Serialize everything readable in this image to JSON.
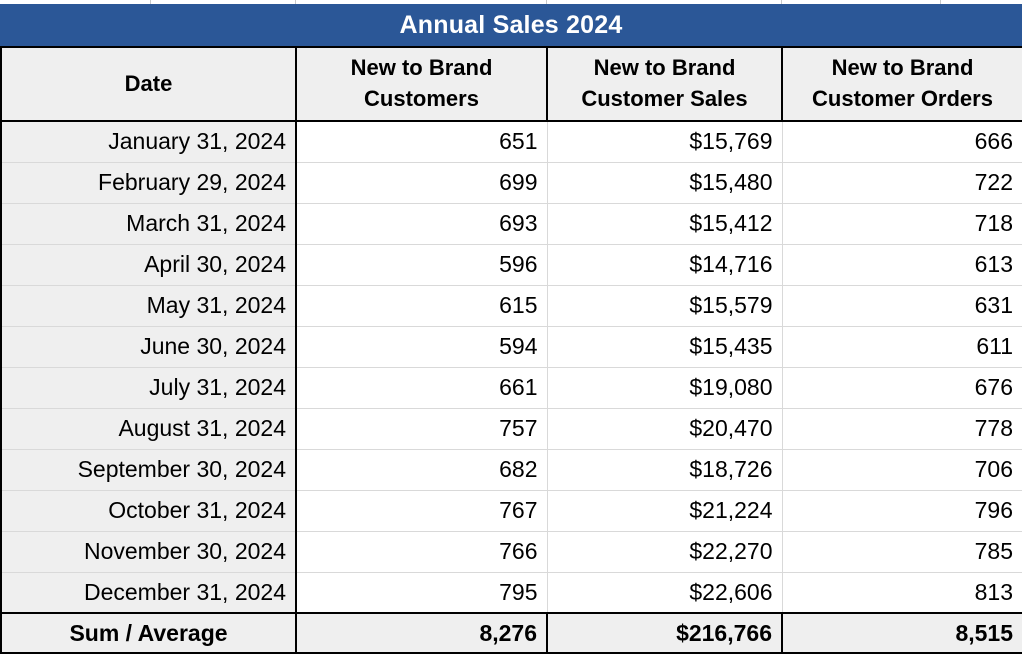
{
  "title": "Annual Sales 2024",
  "colors": {
    "title_bar_blue": "#2b5797",
    "title_text": "#ffffff",
    "header_cell_gray": "#efefef",
    "date_column_gray": "#efefef",
    "footer_gray": "#efefef",
    "data_cell_white": "#ffffff",
    "grid_line_gray": "#d9d9d9",
    "border_black": "#000000",
    "text_black": "#000000"
  },
  "table": {
    "columns": [
      "Date",
      "New to Brand Customers",
      "New to Brand Customer Sales",
      "New to Brand Customer Orders"
    ],
    "rows": [
      {
        "date": "January 31, 2024",
        "customers": "651",
        "sales": "$15,769",
        "orders": "666"
      },
      {
        "date": "February 29, 2024",
        "customers": "699",
        "sales": "$15,480",
        "orders": "722"
      },
      {
        "date": "March 31, 2024",
        "customers": "693",
        "sales": "$15,412",
        "orders": "718"
      },
      {
        "date": "April 30, 2024",
        "customers": "596",
        "sales": "$14,716",
        "orders": "613"
      },
      {
        "date": "May 31, 2024",
        "customers": "615",
        "sales": "$15,579",
        "orders": "631"
      },
      {
        "date": "June 30, 2024",
        "customers": "594",
        "sales": "$15,435",
        "orders": "611"
      },
      {
        "date": "July 31, 2024",
        "customers": "661",
        "sales": "$19,080",
        "orders": "676"
      },
      {
        "date": "August 31, 2024",
        "customers": "757",
        "sales": "$20,470",
        "orders": "778"
      },
      {
        "date": "September 30, 2024",
        "customers": "682",
        "sales": "$18,726",
        "orders": "706"
      },
      {
        "date": "October 31, 2024",
        "customers": "767",
        "sales": "$21,224",
        "orders": "796"
      },
      {
        "date": "November 30, 2024",
        "customers": "766",
        "sales": "$22,270",
        "orders": "785"
      },
      {
        "date": "December 31, 2024",
        "customers": "795",
        "sales": "$22,606",
        "orders": "813"
      }
    ],
    "footer": {
      "label": "Sum / Average",
      "customers": "8,276",
      "sales": "$216,766",
      "orders": "8,515"
    }
  },
  "chart_data": {
    "type": "table",
    "title": "Annual Sales 2024",
    "columns": [
      "Date",
      "New to Brand Customers",
      "New to Brand Customer Sales",
      "New to Brand Customer Orders"
    ],
    "categories": [
      "January 31, 2024",
      "February 29, 2024",
      "March 31, 2024",
      "April 30, 2024",
      "May 31, 2024",
      "June 30, 2024",
      "July 31, 2024",
      "August 31, 2024",
      "September 30, 2024",
      "October 31, 2024",
      "November 30, 2024",
      "December 31, 2024"
    ],
    "series": [
      {
        "name": "New to Brand Customers",
        "values": [
          651,
          699,
          693,
          596,
          615,
          594,
          661,
          757,
          682,
          767,
          766,
          795
        ],
        "sum": 8276
      },
      {
        "name": "New to Brand Customer Sales",
        "unit": "$",
        "values": [
          15769,
          15480,
          15412,
          14716,
          15579,
          15435,
          19080,
          20470,
          18726,
          21224,
          22270,
          22606
        ],
        "sum": 216766
      },
      {
        "name": "New to Brand Customer Orders",
        "values": [
          666,
          722,
          718,
          613,
          631,
          611,
          676,
          778,
          706,
          796,
          785,
          813
        ],
        "sum": 8515
      }
    ],
    "footer_label": "Sum / Average"
  }
}
